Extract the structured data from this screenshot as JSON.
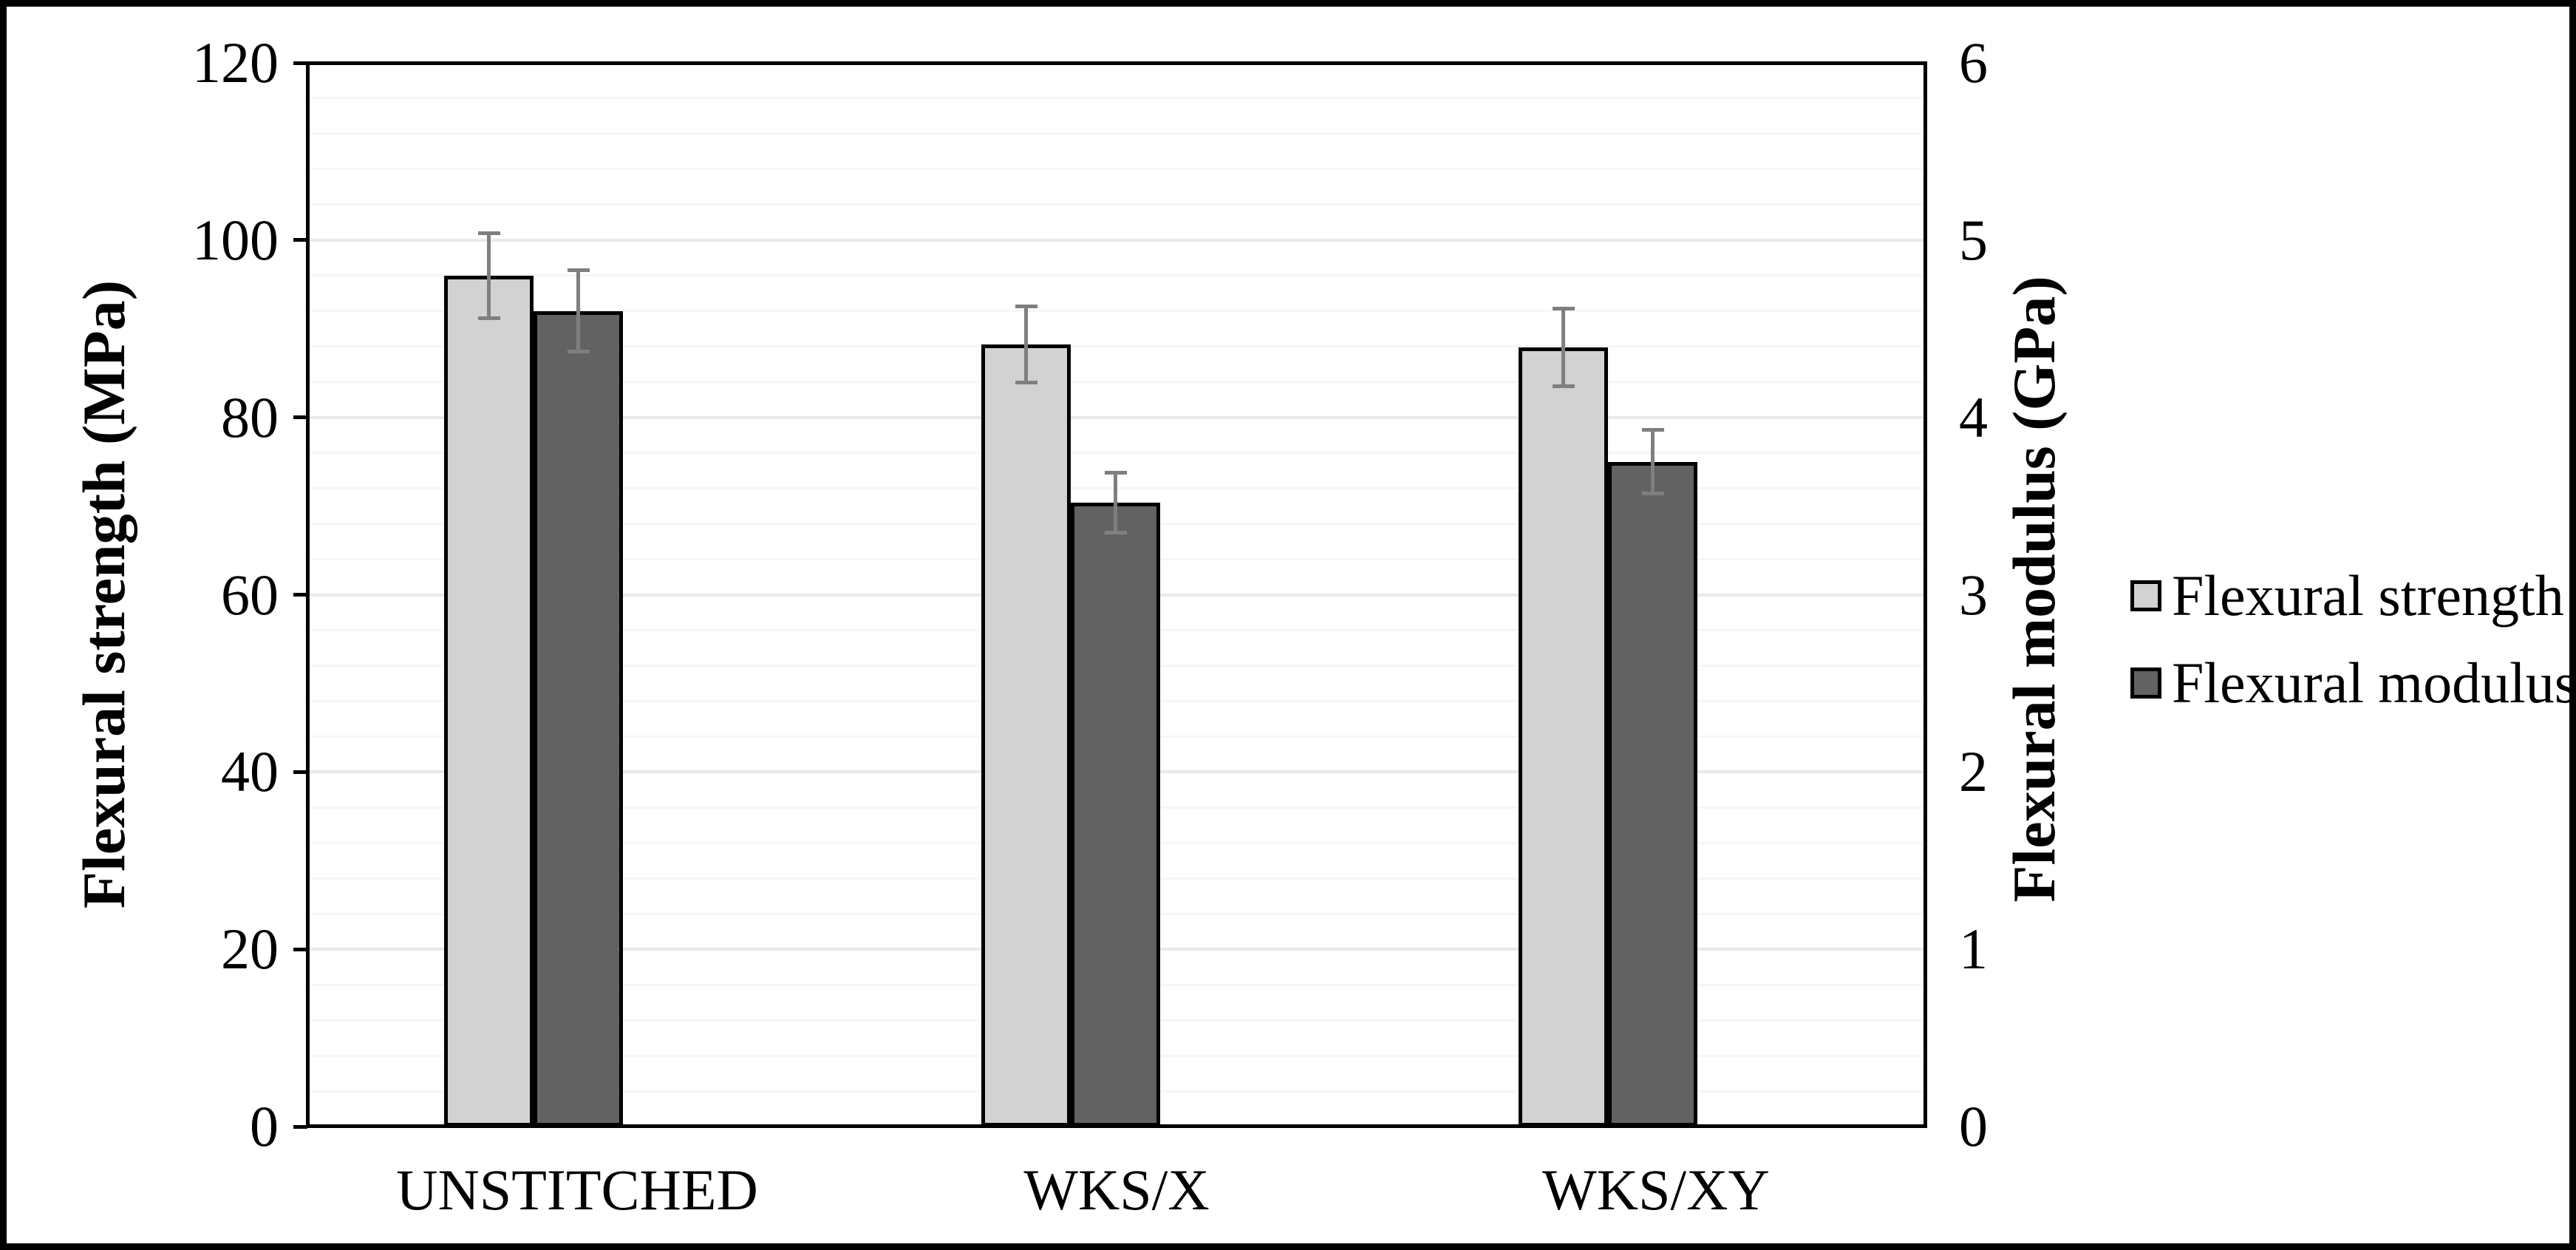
{
  "chart_data": {
    "type": "bar",
    "subtype": "grouped-dual-axis",
    "categories": [
      "UNSTITCHED",
      "WKS/X",
      "WKS/XY"
    ],
    "series": [
      {
        "name": "Flexural strength",
        "axis": "left",
        "unit": "MPa",
        "color": "#d2d2d2",
        "values": [
          96.0,
          88.2,
          87.9
        ],
        "error_bars": [
          4.8,
          4.3,
          4.4
        ]
      },
      {
        "name": "Flexural modulus",
        "axis": "right",
        "unit": "GPa",
        "color": "#626262",
        "values": [
          4.6,
          3.52,
          3.75
        ],
        "error_bars": [
          0.23,
          0.17,
          0.18
        ]
      }
    ],
    "left_axis": {
      "title": "Flexural strength (MPa)",
      "min": 0,
      "max": 120,
      "major_step": 20,
      "minor_step": 4,
      "ticks": [
        "0",
        "20",
        "40",
        "60",
        "80",
        "100",
        "120"
      ]
    },
    "right_axis": {
      "title": "Flexural modulus (GPa)",
      "min": 0,
      "max": 6,
      "major_step": 1,
      "minor_step": 0.2,
      "ticks": [
        "0",
        "1",
        "2",
        "3",
        "4",
        "5",
        "6"
      ]
    },
    "legend": {
      "position": "right",
      "entries": [
        "Flexural strength",
        "Flexural modulus"
      ]
    },
    "grid": {
      "on": true,
      "major_color": "#e9e9e9",
      "minor_color": "#f6f6f6"
    },
    "error_bar_color": "#7f7f7f",
    "bar_border_color": "#000000",
    "frame_color": "#000000"
  }
}
